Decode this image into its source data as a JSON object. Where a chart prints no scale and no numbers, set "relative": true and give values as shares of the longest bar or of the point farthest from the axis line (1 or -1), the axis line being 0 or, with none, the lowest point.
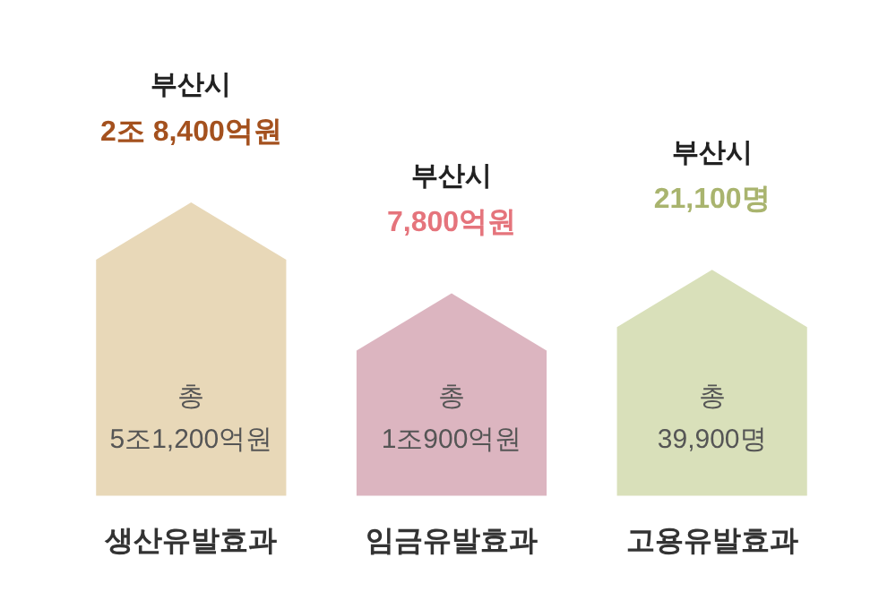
{
  "chart_data": {
    "type": "bar",
    "relative": true,
    "categories": [
      "생산유발효과",
      "임금유발효과",
      "고용유발효과"
    ],
    "values": [
      1,
      0.69,
      0.77
    ],
    "colors": [
      "#e8d8b8",
      "#dcb5c0",
      "#d9e0ba"
    ],
    "annotations": [
      "부산시",
      "2조 8,400억원",
      "총",
      "5조1,200억원",
      "부산시",
      "7,800억원",
      "총",
      "1조900억원",
      "부산시",
      "21,100명",
      "총",
      "39,900명"
    ]
  }
}
